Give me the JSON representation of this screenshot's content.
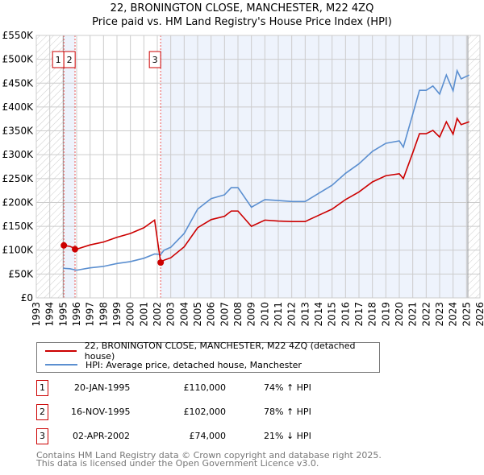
{
  "title_line1": "22, BRONINGTON CLOSE, MANCHESTER, M22 4ZQ",
  "title_line2": "Price paid vs. HM Land Registry's House Price Index (HPI)",
  "colors": {
    "property": "#cc0000",
    "hpi": "#5b8fd0",
    "shade": "#eef3fc",
    "grid": "#cccccc"
  },
  "chart_data": {
    "type": "line",
    "ylabel": "",
    "xlabel": "",
    "xlim": [
      1993,
      2026
    ],
    "ylim": [
      0,
      550000
    ],
    "y_ticks": [
      {
        "v": 0,
        "label": "£0"
      },
      {
        "v": 50000,
        "label": "£50K"
      },
      {
        "v": 100000,
        "label": "£100K"
      },
      {
        "v": 150000,
        "label": "£150K"
      },
      {
        "v": 200000,
        "label": "£200K"
      },
      {
        "v": 250000,
        "label": "£250K"
      },
      {
        "v": 300000,
        "label": "£300K"
      },
      {
        "v": 350000,
        "label": "£350K"
      },
      {
        "v": 400000,
        "label": "£400K"
      },
      {
        "v": 450000,
        "label": "£450K"
      },
      {
        "v": 500000,
        "label": "£500K"
      },
      {
        "v": 550000,
        "label": "£550K"
      }
    ],
    "x_ticks": [
      "1993",
      "1994",
      "1995",
      "1996",
      "1997",
      "1998",
      "1999",
      "2000",
      "2001",
      "2002",
      "2003",
      "2004",
      "2005",
      "2006",
      "2007",
      "2008",
      "2009",
      "2010",
      "2011",
      "2012",
      "2013",
      "2014",
      "2015",
      "2016",
      "2017",
      "2018",
      "2019",
      "2020",
      "2021",
      "2022",
      "2023",
      "2024",
      "2025",
      "2026"
    ],
    "grid": true,
    "hatched_before": 1995,
    "hatched_after": 2025.1,
    "x": [
      1995,
      1995.5,
      1996,
      1997,
      1998,
      1999,
      2000,
      2001,
      2001.8,
      2002.25,
      2002.5,
      2003,
      2004,
      2005,
      2006,
      2007,
      2007.5,
      2008,
      2009,
      2010,
      2011,
      2012,
      2013,
      2014,
      2015,
      2016,
      2017,
      2018,
      2019,
      2020,
      2020.3,
      2021,
      2021.5,
      2022,
      2022.5,
      2023,
      2023.5,
      2024,
      2024.3,
      2024.6,
      2025.2
    ],
    "series": [
      {
        "name": "22, BRONINGTON CLOSE, MANCHESTER, M22 4ZQ (detached house)",
        "values": [
          110,
          108,
          102,
          111,
          117,
          127,
          135,
          147,
          163,
          74,
          79,
          84,
          107,
          147,
          164,
          171,
          182,
          182,
          150,
          163,
          161,
          160,
          160,
          173,
          186,
          206,
          222,
          243,
          256,
          260,
          250,
          304,
          344,
          344,
          351,
          337,
          369,
          343,
          376,
          363,
          369
        ]
      },
      {
        "name": "HPI: Average price, detached house, Manchester",
        "values": [
          62,
          61,
          58,
          63,
          66,
          72,
          76,
          83,
          92,
          91,
          100,
          106,
          135,
          186,
          208,
          216,
          231,
          231,
          190,
          206,
          204,
          202,
          202,
          219,
          236,
          261,
          281,
          307,
          324,
          329,
          316,
          385,
          435,
          435,
          444,
          427,
          467,
          434,
          476,
          459,
          467
        ]
      }
    ],
    "values_unit": "thousand GBP",
    "sales": [
      {
        "id": "1",
        "x": 1995.05,
        "y": 110
      },
      {
        "id": "2",
        "x": 1995.88,
        "y": 102
      },
      {
        "id": "3",
        "x": 2002.25,
        "y": 74
      }
    ]
  },
  "legend": {
    "property": "22, BRONINGTON CLOSE, MANCHESTER, M22 4ZQ (detached house)",
    "hpi": "HPI: Average price, detached house, Manchester"
  },
  "transactions": [
    {
      "id": "1",
      "date": "20-JAN-1995",
      "price": "£110,000",
      "hpi": "74% ↑ HPI"
    },
    {
      "id": "2",
      "date": "16-NOV-1995",
      "price": "£102,000",
      "hpi": "78% ↑ HPI"
    },
    {
      "id": "3",
      "date": "02-APR-2002",
      "price": "£74,000",
      "hpi": "21% ↓ HPI"
    }
  ],
  "footer": {
    "line1": "Contains HM Land Registry data © Crown copyright and database right 2025.",
    "line2": "This data is licensed under the Open Government Licence v3.0."
  }
}
